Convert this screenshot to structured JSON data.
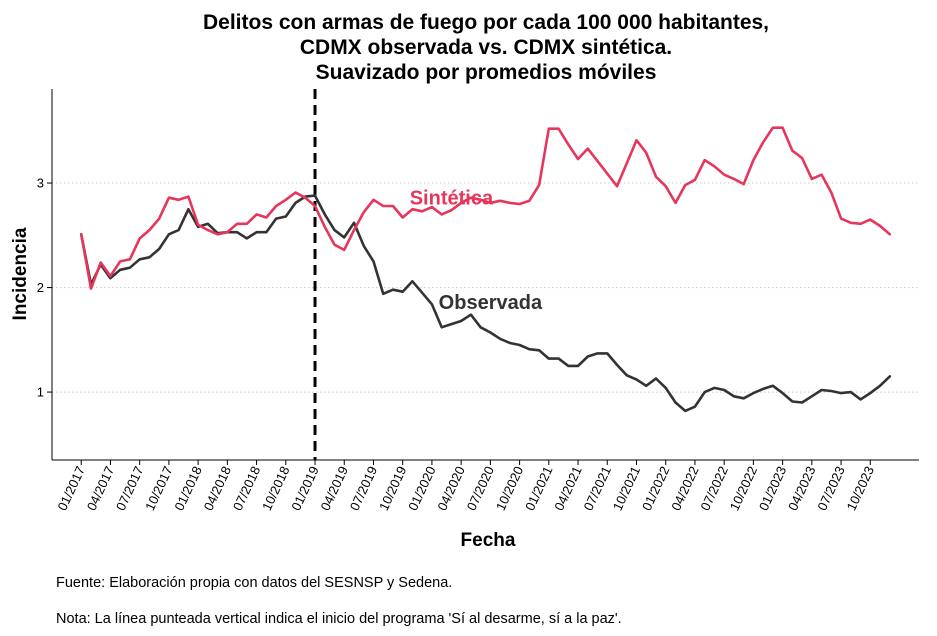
{
  "chart_data": {
    "type": "line",
    "title_lines": [
      "Delitos con armas de fuego por cada 100 000 habitantes,",
      "CDMX observada vs. CDMX sintética.",
      "Suavizado por promedios móviles"
    ],
    "xlabel": "Fecha",
    "ylabel": "Incidencia",
    "ylim": [
      0.35,
      3.9
    ],
    "y_ticks": [
      1,
      2,
      3
    ],
    "y_tick_labels": [
      "1",
      "2",
      "3"
    ],
    "x_ticks": [
      "2017-01",
      "2017-04",
      "2017-07",
      "2017-10",
      "2018-01",
      "2018-04",
      "2018-07",
      "2018-10",
      "2019-01",
      "2019-04",
      "2019-07",
      "2019-10",
      "2020-01",
      "2020-04",
      "2020-07",
      "2020-10",
      "2021-01",
      "2021-04",
      "2021-07",
      "2021-10",
      "2022-01",
      "2022-04",
      "2022-07",
      "2022-10",
      "2023-01",
      "2023-04",
      "2023-07",
      "2023-10"
    ],
    "x_tick_labels": [
      "01/2017",
      "04/2017",
      "07/2017",
      "10/2017",
      "01/2018",
      "04/2018",
      "07/2018",
      "10/2018",
      "01/2019",
      "04/2019",
      "07/2019",
      "10/2019",
      "01/2020",
      "04/2020",
      "07/2020",
      "10/2020",
      "01/2021",
      "04/2021",
      "07/2021",
      "10/2021",
      "01/2022",
      "04/2022",
      "07/2022",
      "10/2022",
      "01/2023",
      "04/2023",
      "07/2023",
      "10/2023"
    ],
    "x_range": [
      "2016-10",
      "2024-03"
    ],
    "vline": "2019-01",
    "grid": "horizontal dotted",
    "legend": "inline labels",
    "dates": [
      "2017-01",
      "2017-02",
      "2017-03",
      "2017-04",
      "2017-05",
      "2017-06",
      "2017-07",
      "2017-08",
      "2017-09",
      "2017-10",
      "2017-11",
      "2017-12",
      "2018-01",
      "2018-02",
      "2018-03",
      "2018-04",
      "2018-05",
      "2018-06",
      "2018-07",
      "2018-08",
      "2018-09",
      "2018-10",
      "2018-11",
      "2018-12",
      "2019-01",
      "2019-02",
      "2019-03",
      "2019-04",
      "2019-05",
      "2019-06",
      "2019-07",
      "2019-08",
      "2019-09",
      "2019-10",
      "2019-11",
      "2019-12",
      "2020-01",
      "2020-02",
      "2020-03",
      "2020-04",
      "2020-05",
      "2020-06",
      "2020-07",
      "2020-08",
      "2020-09",
      "2020-10",
      "2020-11",
      "2020-12",
      "2021-01",
      "2021-02",
      "2021-03",
      "2021-04",
      "2021-05",
      "2021-06",
      "2021-07",
      "2021-08",
      "2021-09",
      "2021-10",
      "2021-11",
      "2021-12",
      "2022-01",
      "2022-02",
      "2022-03",
      "2022-04",
      "2022-05",
      "2022-06",
      "2022-07",
      "2022-08",
      "2022-09",
      "2022-10",
      "2022-11",
      "2022-12",
      "2023-01",
      "2023-02",
      "2023-03",
      "2023-04",
      "2023-05",
      "2023-06",
      "2023-07",
      "2023-08",
      "2023-09",
      "2023-10",
      "2023-11",
      "2023-12"
    ],
    "series": [
      {
        "name": "Observada",
        "color": "#333333",
        "values": [
          2.51,
          2.03,
          2.22,
          2.09,
          2.17,
          2.19,
          2.27,
          2.29,
          2.37,
          2.51,
          2.55,
          2.75,
          2.58,
          2.61,
          2.52,
          2.53,
          2.53,
          2.47,
          2.53,
          2.53,
          2.66,
          2.68,
          2.81,
          2.87,
          2.88,
          2.7,
          2.55,
          2.48,
          2.62,
          2.4,
          2.25,
          1.94,
          1.98,
          1.96,
          2.06,
          1.95,
          1.84,
          1.62,
          1.65,
          1.68,
          1.74,
          1.62,
          1.57,
          1.51,
          1.47,
          1.45,
          1.41,
          1.4,
          1.32,
          1.32,
          1.25,
          1.25,
          1.34,
          1.37,
          1.37,
          1.26,
          1.16,
          1.12,
          1.06,
          1.13,
          1.04,
          0.9,
          0.82,
          0.86,
          1.0,
          1.04,
          1.02,
          0.96,
          0.94,
          0.99,
          1.03,
          1.06,
          0.99,
          0.91,
          0.9,
          0.96,
          1.02,
          1.01,
          0.99,
          1.0,
          0.93,
          0.99,
          1.06,
          1.15
        ]
      },
      {
        "name": "Sintética",
        "color": "#e6365c",
        "values": [
          2.51,
          1.99,
          2.24,
          2.11,
          2.25,
          2.27,
          2.47,
          2.55,
          2.66,
          2.86,
          2.84,
          2.87,
          2.6,
          2.55,
          2.51,
          2.53,
          2.61,
          2.61,
          2.7,
          2.67,
          2.78,
          2.84,
          2.91,
          2.86,
          2.78,
          2.58,
          2.41,
          2.36,
          2.55,
          2.72,
          2.84,
          2.78,
          2.78,
          2.67,
          2.75,
          2.73,
          2.77,
          2.7,
          2.74,
          2.81,
          2.86,
          2.84,
          2.81,
          2.83,
          2.81,
          2.8,
          2.83,
          2.98,
          3.52,
          3.52,
          3.37,
          3.23,
          3.33,
          3.21,
          3.09,
          2.97,
          3.19,
          3.41,
          3.29,
          3.06,
          2.97,
          2.81,
          2.98,
          3.03,
          3.22,
          3.16,
          3.08,
          3.04,
          2.99,
          3.22,
          3.39,
          3.53,
          3.53,
          3.31,
          3.24,
          3.04,
          3.08,
          2.91,
          2.66,
          2.62,
          2.61,
          2.65,
          2.59,
          2.51
        ]
      }
    ],
    "annotations": [
      {
        "text": "Sintética",
        "x": "2020-03",
        "y": 2.86,
        "color": "#e6365c"
      },
      {
        "text": "Observada",
        "x": "2020-07",
        "y": 1.86,
        "color": "#333333"
      }
    ]
  },
  "captions": {
    "source": "Fuente: Elaboración propia con datos del SESNSP y Sedena.",
    "note": "Nota: La línea punteada vertical indica el inicio del programa 'Sí al desarme, sí a la paz'."
  }
}
